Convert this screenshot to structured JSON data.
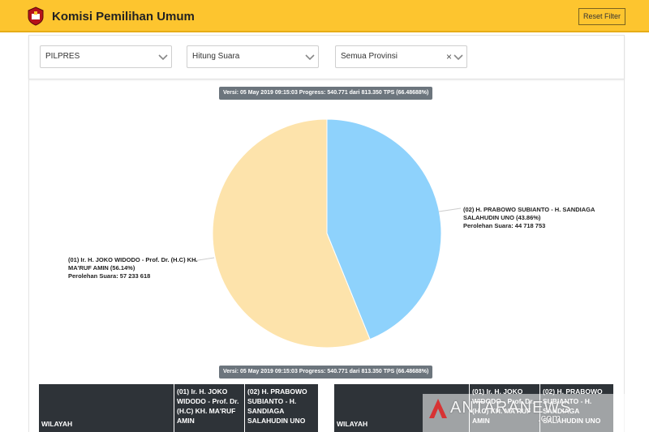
{
  "header": {
    "title": "Komisi Pemilihan Umum",
    "reset_label": "Reset Filter",
    "brand_color": "#fdc52f"
  },
  "filters": [
    {
      "value": "PILPRES"
    },
    {
      "value": "Hitung Suara"
    },
    {
      "value": "Semua Provinsi",
      "clear_label": "×"
    }
  ],
  "version_text": "Versi: 05 May 2019 09:15:03 Progress: 540.771 dari 813.350 TPS (66.48688%)",
  "chart_data": {
    "type": "pie",
    "slices": [
      {
        "label": "(02) H. PRABOWO SUBIANTO - H. SANDIAGA SALAHUDIN UNO (43.86%)",
        "votes_text": "Perolehan Suara: 44 718 753",
        "votes": 44718753,
        "percent": 43.86,
        "color": "#8ed2fc"
      },
      {
        "label": "(01) Ir. H. JOKO WIDODO - Prof. Dr. (H.C) KH. MA'RUF AMIN (56.14%)",
        "votes_text": "Perolehan Suara: 57 233 618",
        "votes": 57233618,
        "percent": 56.14,
        "color": "#fde3ab"
      }
    ]
  },
  "table_headers": {
    "wilayah": "WILAYAH",
    "c01": "(01) Ir. H. JOKO WIDODO - Prof. Dr. (H.C) KH. MA'RUF AMIN",
    "c02": "(02) H. PRABOWO SUBIANTO - H. SANDIAGA SALAHUDIN UNO"
  },
  "watermark": {
    "text": "ANTARANEWS",
    "suffix": ".com"
  }
}
